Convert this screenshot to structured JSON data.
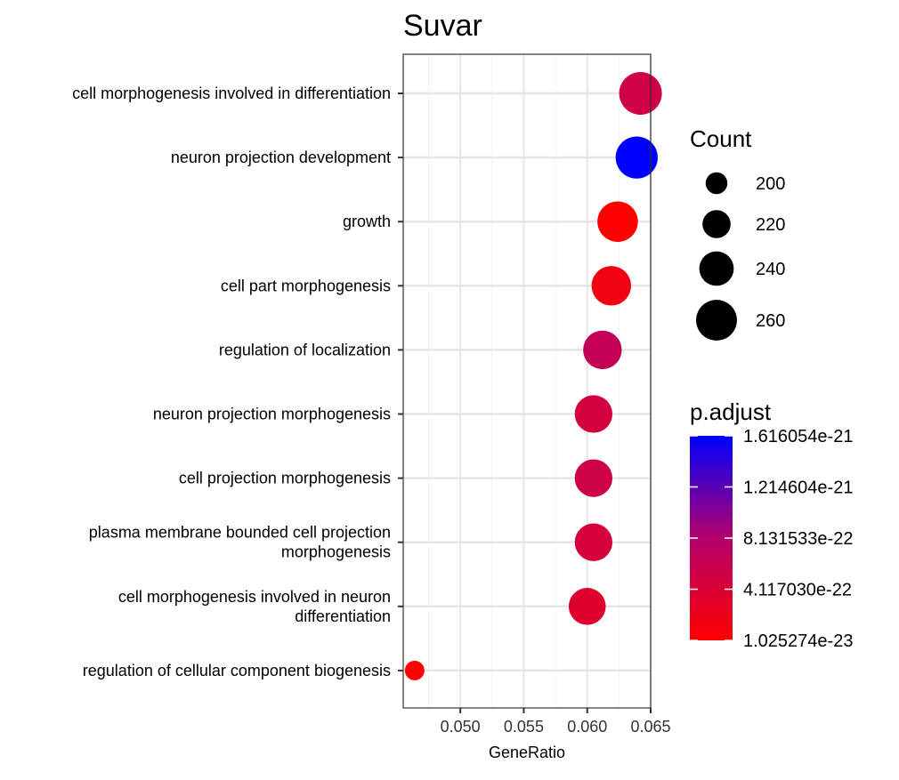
{
  "chart_data": {
    "type": "scatter",
    "title": "Suvar",
    "xlabel": "GeneRatio",
    "ylabel": "",
    "xlim": [
      0.0455,
      0.065
    ],
    "x_ticks": [
      "0.050",
      "0.055",
      "0.060",
      "0.065"
    ],
    "x_tick_values": [
      0.05,
      0.055,
      0.06,
      0.065
    ],
    "grid": true,
    "categories": [
      [
        "cell morphogenesis involved in differentiation"
      ],
      [
        "neuron projection development"
      ],
      [
        "growth"
      ],
      [
        "cell part morphogenesis"
      ],
      [
        "regulation of localization"
      ],
      [
        "neuron projection morphogenesis"
      ],
      [
        "cell projection morphogenesis"
      ],
      [
        "plasma membrane bounded cell projection",
        "morphogenesis"
      ],
      [
        "cell morphogenesis involved in neuron",
        "differentiation"
      ],
      [
        "regulation of cellular component biogenesis"
      ]
    ],
    "points": [
      {
        "x": 0.0642,
        "count": 266,
        "p_adjust": 5.2e-22
      },
      {
        "x": 0.0639,
        "count": 264,
        "p_adjust": 1.616054e-21
      },
      {
        "x": 0.0624,
        "count": 259,
        "p_adjust": 1.2e-23
      },
      {
        "x": 0.0619,
        "count": 256,
        "p_adjust": 1.5e-22
      },
      {
        "x": 0.0612,
        "count": 253,
        "p_adjust": 6.5e-22
      },
      {
        "x": 0.0605,
        "count": 250,
        "p_adjust": 4.8e-22
      },
      {
        "x": 0.0605,
        "count": 250,
        "p_adjust": 5.5e-22
      },
      {
        "x": 0.0605,
        "count": 250,
        "p_adjust": 4.5e-22
      },
      {
        "x": 0.06,
        "count": 248,
        "p_adjust": 3.6e-22
      },
      {
        "x": 0.0464,
        "count": 193,
        "p_adjust": 1.025274e-23
      }
    ],
    "size_legend": {
      "title": "Count",
      "labels": [
        "200",
        "220",
        "240",
        "260"
      ],
      "values": [
        200,
        220,
        240,
        260
      ]
    },
    "color_legend": {
      "title": "p.adjust",
      "labels": [
        "1.616054e-21",
        "1.214604e-21",
        "8.131533e-22",
        "4.117030e-22",
        "1.025274e-23"
      ],
      "values": [
        1.616054e-21,
        1.214604e-21,
        8.131533e-22,
        4.11703e-22,
        1.025274e-23
      ],
      "low_color": "#ff0000",
      "high_color": "#0000ff"
    },
    "legend_position": "right"
  }
}
